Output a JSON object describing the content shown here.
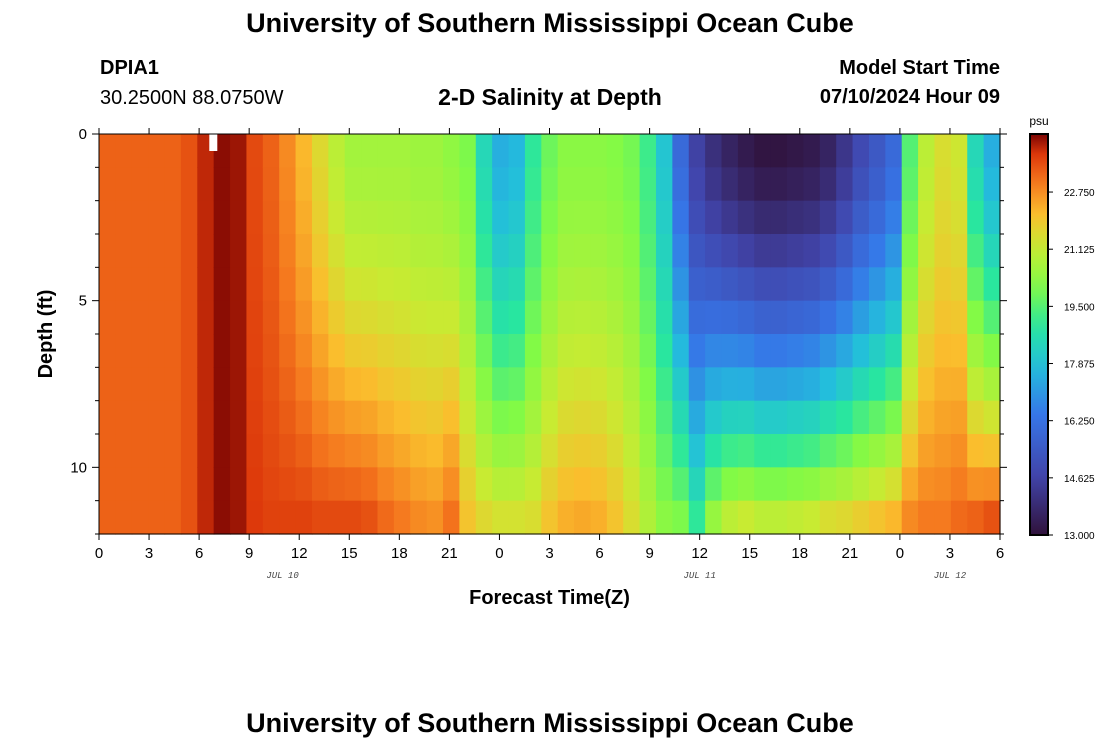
{
  "header": {
    "title": "University of Southern Mississippi Ocean Cube",
    "station_id": "DPIA1",
    "station_coords": "30.2500N  88.0750W",
    "plot_title": "2-D Salinity at Depth",
    "start_label": "Model Start Time",
    "start_value": "07/10/2024 Hour 09"
  },
  "footer": {
    "title": "University of Southern Mississippi Ocean Cube"
  },
  "chart_data": {
    "type": "heatmap",
    "title": "2-D Salinity at Depth",
    "xlabel": "Forecast Time(Z)",
    "ylabel": "Depth (ft)",
    "x_range_hours": [
      0,
      54
    ],
    "x_tick_values": [
      0,
      3,
      6,
      9,
      12,
      15,
      18,
      21,
      24,
      27,
      30,
      33,
      36,
      39,
      42,
      45,
      48,
      51,
      54
    ],
    "x_tick_labels": [
      "0",
      "3",
      "6",
      "9",
      "12",
      "15",
      "18",
      "21",
      "0",
      "3",
      "6",
      "9",
      "12",
      "15",
      "18",
      "21",
      "0",
      "3",
      "6"
    ],
    "date_labels": [
      {
        "hour": 11,
        "text": "JUL 10"
      },
      {
        "hour": 36,
        "text": "JUL 11"
      },
      {
        "hour": 51,
        "text": "JUL 12"
      }
    ],
    "y_range_ft": [
      0,
      12
    ],
    "y_tick_values": [
      0,
      5,
      10
    ],
    "y_tick_labels": [
      "0",
      "5",
      "10"
    ],
    "colorbar": {
      "unit": "psu",
      "min": 13.0,
      "max": 24.4,
      "tick_values": [
        13.0,
        14.625,
        16.25,
        17.875,
        19.5,
        21.125,
        22.75
      ],
      "tick_labels": [
        "13.000",
        "14.625",
        "16.250",
        "17.875",
        "19.500",
        "21.125",
        "22.750"
      ]
    },
    "column_times_hours": [
      0,
      1,
      2,
      3,
      4,
      5,
      6,
      7,
      8,
      9,
      10,
      11,
      12,
      13,
      14,
      15,
      16,
      17,
      18,
      19,
      20,
      21,
      22,
      23,
      24,
      25,
      26,
      27,
      28,
      29,
      30,
      31,
      32,
      33,
      34,
      35,
      36,
      37,
      38,
      39,
      40,
      41,
      42,
      43,
      44,
      45,
      46,
      47,
      48,
      49,
      50,
      51,
      52,
      53,
      54
    ],
    "salinity_psu_surface": [
      23.3,
      23.3,
      23.3,
      23.3,
      23.3,
      23.5,
      24.0,
      24.3,
      24.2,
      23.6,
      23.3,
      22.8,
      22.2,
      21.6,
      21.0,
      20.6,
      20.6,
      20.6,
      20.6,
      20.5,
      20.5,
      20.3,
      20.0,
      18.5,
      17.5,
      17.7,
      19.0,
      19.8,
      20.2,
      20.2,
      20.2,
      20.1,
      19.9,
      19.2,
      18.0,
      16.0,
      14.6,
      14.0,
      13.6,
      13.3,
      13.1,
      13.1,
      13.2,
      13.3,
      13.6,
      14.2,
      14.9,
      15.4,
      16.0,
      19.5,
      21.0,
      21.5,
      21.3,
      18.5,
      17.5
    ],
    "salinity_psu_bottom": [
      23.3,
      23.3,
      23.3,
      23.3,
      23.3,
      23.5,
      24.0,
      24.3,
      24.2,
      23.8,
      23.7,
      23.7,
      23.7,
      23.6,
      23.6,
      23.6,
      23.5,
      23.2,
      23.0,
      22.8,
      22.7,
      23.1,
      22.0,
      21.6,
      21.4,
      21.4,
      21.5,
      22.0,
      22.3,
      22.4,
      22.3,
      22.0,
      21.5,
      20.8,
      20.2,
      20.0,
      19.0,
      20.4,
      21.0,
      21.2,
      21.0,
      21.0,
      21.1,
      21.2,
      21.5,
      21.6,
      21.8,
      22.0,
      22.2,
      22.8,
      23.0,
      23.0,
      23.2,
      23.3,
      23.5
    ]
  }
}
